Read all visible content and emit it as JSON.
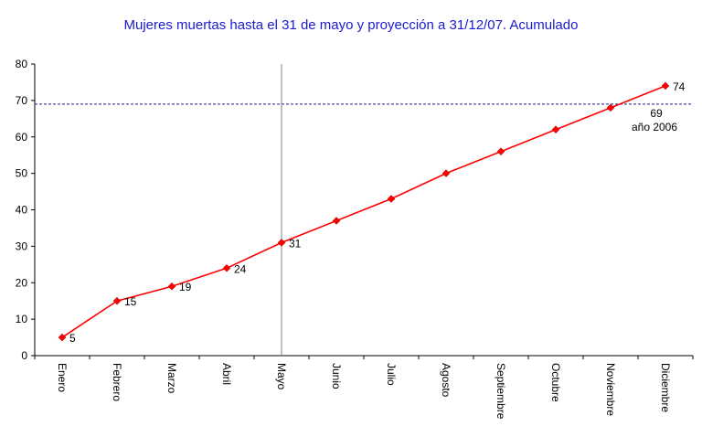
{
  "chart_data": {
    "type": "line",
    "title": "Mujeres muertas hasta el 31 de mayo y proyección a 31/12/07. Acumulado",
    "xlabel": "",
    "ylabel": "",
    "categories": [
      "Enero",
      "Febrero",
      "Marzo",
      "Abril",
      "Mayo",
      "Junio",
      "Julio",
      "Agosto",
      "Septiembre",
      "Octubre",
      "Noviembre",
      "Diciembre"
    ],
    "series": [
      {
        "values": [
          5,
          15,
          19,
          24,
          31,
          37,
          43,
          50,
          56,
          62,
          68,
          74
        ]
      }
    ],
    "data_labels": [
      {
        "index": 0,
        "text": "5"
      },
      {
        "index": 1,
        "text": "15"
      },
      {
        "index": 2,
        "text": "19"
      },
      {
        "index": 3,
        "text": "24"
      },
      {
        "index": 4,
        "text": "31"
      },
      {
        "index": 11,
        "text": "74"
      }
    ],
    "reference_line": {
      "value": 69,
      "label_value": "69",
      "label_text": "año 2006"
    },
    "divider_category": "Mayo",
    "ylim": [
      0,
      80
    ],
    "yticks": [
      0,
      10,
      20,
      30,
      40,
      50,
      60,
      70,
      80
    ],
    "grid": false,
    "legend": "none",
    "colors": {
      "line": "#ff0000",
      "marker": "#ff0000",
      "reference": "#1a1aa0",
      "title": "#1a1ad0",
      "divider": "#808080"
    }
  }
}
